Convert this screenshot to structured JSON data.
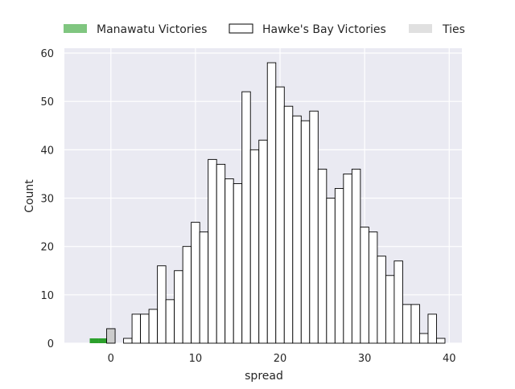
{
  "chart_data": {
    "type": "bar",
    "xlabel": "spread",
    "ylabel": "Count",
    "xlim": [
      -5.5,
      41.5
    ],
    "ylim": [
      0,
      61
    ],
    "xticks": [
      0,
      10,
      20,
      30,
      40
    ],
    "yticks": [
      0,
      10,
      20,
      30,
      40,
      50,
      60
    ],
    "grid": true,
    "legend_position": "top",
    "bin_width": 1,
    "series": [
      {
        "name": "Manawatu Victories",
        "color": "#2ca02c",
        "fill_style": "filled",
        "bins": [
          {
            "x_start": -2.5,
            "count": 1
          },
          {
            "x_start": -1.5,
            "count": 1
          }
        ]
      },
      {
        "name": "Hawke's Bay Victories",
        "color": "#ffffff",
        "edge_color": "#000000",
        "fill_style": "outline",
        "bins": [
          {
            "x_start": 1.5,
            "count": 1
          },
          {
            "x_start": 2.5,
            "count": 6
          },
          {
            "x_start": 3.5,
            "count": 6
          },
          {
            "x_start": 4.5,
            "count": 7
          },
          {
            "x_start": 5.5,
            "count": 16
          },
          {
            "x_start": 6.5,
            "count": 9
          },
          {
            "x_start": 7.5,
            "count": 15
          },
          {
            "x_start": 8.5,
            "count": 20
          },
          {
            "x_start": 9.5,
            "count": 25
          },
          {
            "x_start": 10.5,
            "count": 23
          },
          {
            "x_start": 11.5,
            "count": 38
          },
          {
            "x_start": 12.5,
            "count": 37
          },
          {
            "x_start": 13.5,
            "count": 34
          },
          {
            "x_start": 14.5,
            "count": 33
          },
          {
            "x_start": 15.5,
            "count": 52
          },
          {
            "x_start": 16.5,
            "count": 40
          },
          {
            "x_start": 17.5,
            "count": 42
          },
          {
            "x_start": 18.5,
            "count": 58
          },
          {
            "x_start": 19.5,
            "count": 53
          },
          {
            "x_start": 20.5,
            "count": 49
          },
          {
            "x_start": 21.5,
            "count": 47
          },
          {
            "x_start": 22.5,
            "count": 46
          },
          {
            "x_start": 23.5,
            "count": 48
          },
          {
            "x_start": 24.5,
            "count": 36
          },
          {
            "x_start": 25.5,
            "count": 30
          },
          {
            "x_start": 26.5,
            "count": 32
          },
          {
            "x_start": 27.5,
            "count": 35
          },
          {
            "x_start": 28.5,
            "count": 36
          },
          {
            "x_start": 29.5,
            "count": 24
          },
          {
            "x_start": 30.5,
            "count": 23
          },
          {
            "x_start": 31.5,
            "count": 18
          },
          {
            "x_start": 32.5,
            "count": 14
          },
          {
            "x_start": 33.5,
            "count": 17
          },
          {
            "x_start": 34.5,
            "count": 8
          },
          {
            "x_start": 35.5,
            "count": 8
          },
          {
            "x_start": 36.5,
            "count": 2
          },
          {
            "x_start": 37.5,
            "count": 6
          },
          {
            "x_start": 38.5,
            "count": 1
          }
        ]
      },
      {
        "name": "Ties",
        "color": "#cccccc",
        "edge_color": "#000000",
        "fill_style": "filled",
        "legend_color": "#e0e0e0",
        "bins": [
          {
            "x_start": -0.5,
            "count": 3
          }
        ]
      }
    ]
  }
}
